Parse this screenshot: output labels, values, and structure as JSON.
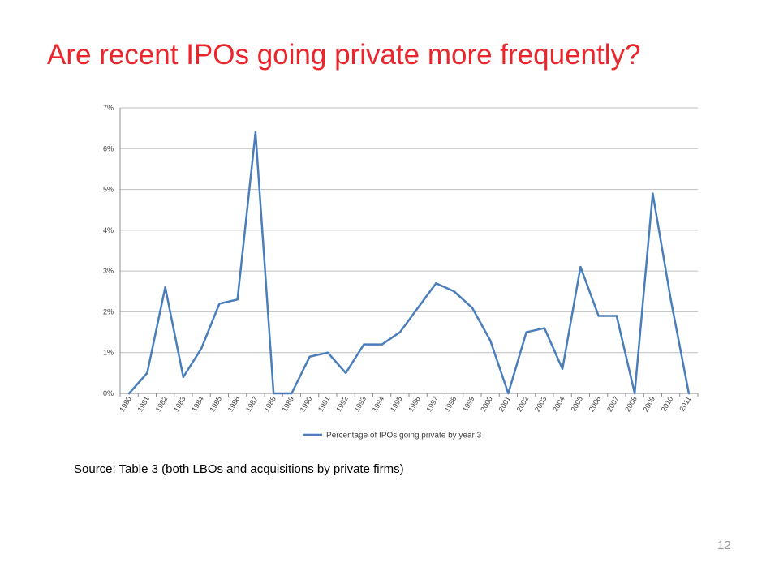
{
  "slide": {
    "title": "Are recent IPOs going private more frequently?",
    "source_note": "Source: Table 3 (both LBOs and acquisitions by private firms)",
    "page_number": "12",
    "title_color": "#e8262b"
  },
  "chart_data": {
    "type": "line",
    "title": "",
    "xlabel": "",
    "ylabel": "",
    "categories": [
      "1980",
      "1981",
      "1982",
      "1983",
      "1984",
      "1985",
      "1986",
      "1987",
      "1988",
      "1989",
      "1990",
      "1991",
      "1992",
      "1993",
      "1994",
      "1995",
      "1996",
      "1997",
      "1998",
      "1999",
      "2000",
      "2001",
      "2002",
      "2003",
      "2004",
      "2005",
      "2006",
      "2007",
      "2008",
      "2009",
      "2010",
      "2011"
    ],
    "series": [
      {
        "name": "Percentage of IPOs going private by year 3",
        "color": "#4a7ebb",
        "values": [
          0.0,
          0.5,
          2.6,
          0.4,
          1.1,
          2.2,
          2.3,
          6.4,
          0.0,
          0.0,
          0.9,
          1.0,
          0.5,
          1.2,
          1.2,
          1.5,
          2.1,
          2.7,
          2.5,
          2.1,
          1.3,
          0.0,
          1.5,
          1.6,
          0.6,
          3.1,
          1.9,
          1.9,
          0.0,
          4.9,
          2.3,
          0.0
        ]
      }
    ],
    "ylim": [
      0,
      7
    ],
    "yticks": [
      0,
      1,
      2,
      3,
      4,
      5,
      6,
      7
    ],
    "ytick_labels": [
      "0%",
      "1%",
      "2%",
      "3%",
      "4%",
      "5%",
      "6%",
      "7%"
    ],
    "grid": true,
    "legend_position": "bottom"
  }
}
